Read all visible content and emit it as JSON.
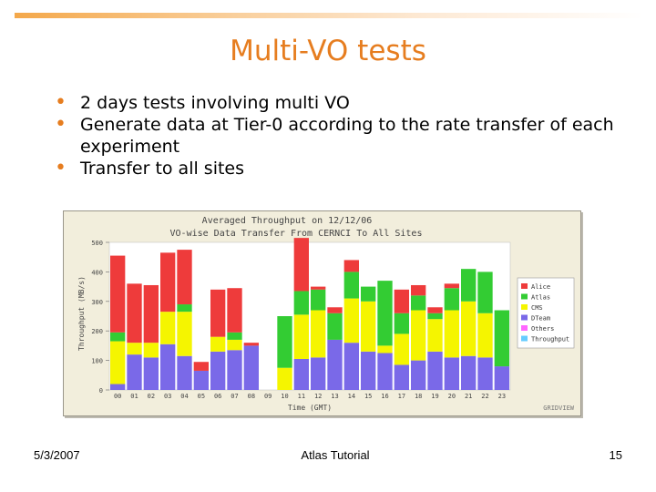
{
  "slide": {
    "title": "Multi-VO tests",
    "bullets": [
      "2 days tests involving multi VO",
      "Generate data at Tier-0 according to the rate transfer of each experiment",
      "Transfer to all sites"
    ]
  },
  "footer": {
    "date": "5/3/2007",
    "center": "Atlas Tutorial",
    "page": "15"
  },
  "colors": {
    "accent": "#e67d1f",
    "alice": "#ee3b3b",
    "atlas": "#33cc33",
    "cms": "#f5f500",
    "dteam": "#7a69e8",
    "others": "#ff66ff",
    "throughput": "#66ccff"
  },
  "chart_data": {
    "type": "bar",
    "stacked": true,
    "title": "Averaged Throughput  on 12/12/06",
    "subtitle": "VO-wise Data Transfer  From CERNCI To All Sites",
    "xlabel": "Time (GMT)",
    "ylabel": "Throughput (MB/s)",
    "ylim": [
      0,
      500
    ],
    "yticks": [
      0,
      100,
      200,
      300,
      400,
      500
    ],
    "watermark": "GRIDVIEW",
    "categories": [
      "00",
      "01",
      "02",
      "03",
      "04",
      "05",
      "06",
      "07",
      "08",
      "09",
      "10",
      "11",
      "12",
      "13",
      "14",
      "15",
      "16",
      "17",
      "18",
      "19",
      "20",
      "21",
      "22",
      "23"
    ],
    "series": [
      {
        "name": "dteam",
        "color": "#7a69e8",
        "values": [
          20,
          120,
          110,
          155,
          115,
          65,
          130,
          135,
          150,
          0,
          0,
          105,
          110,
          170,
          160,
          130,
          125,
          85,
          100,
          130,
          110,
          115,
          110,
          80
        ]
      },
      {
        "name": "cms",
        "color": "#f5f500",
        "values": [
          145,
          40,
          50,
          110,
          150,
          0,
          50,
          35,
          0,
          0,
          75,
          150,
          160,
          0,
          150,
          170,
          25,
          105,
          170,
          110,
          160,
          185,
          150,
          0
        ]
      },
      {
        "name": "atlas",
        "color": "#33cc33",
        "values": [
          30,
          0,
          0,
          0,
          25,
          0,
          0,
          25,
          0,
          0,
          175,
          80,
          70,
          90,
          90,
          50,
          220,
          70,
          50,
          20,
          75,
          110,
          140,
          190
        ]
      },
      {
        "name": "alice",
        "color": "#ee3b3b",
        "values": [
          260,
          200,
          195,
          200,
          185,
          30,
          160,
          150,
          10,
          0,
          0,
          180,
          10,
          20,
          40,
          0,
          0,
          80,
          35,
          20,
          15,
          0,
          0,
          0
        ]
      }
    ],
    "legend": [
      "Alice",
      "Atlas",
      "CMS",
      "DTeam",
      "Others",
      "Throughput"
    ]
  }
}
